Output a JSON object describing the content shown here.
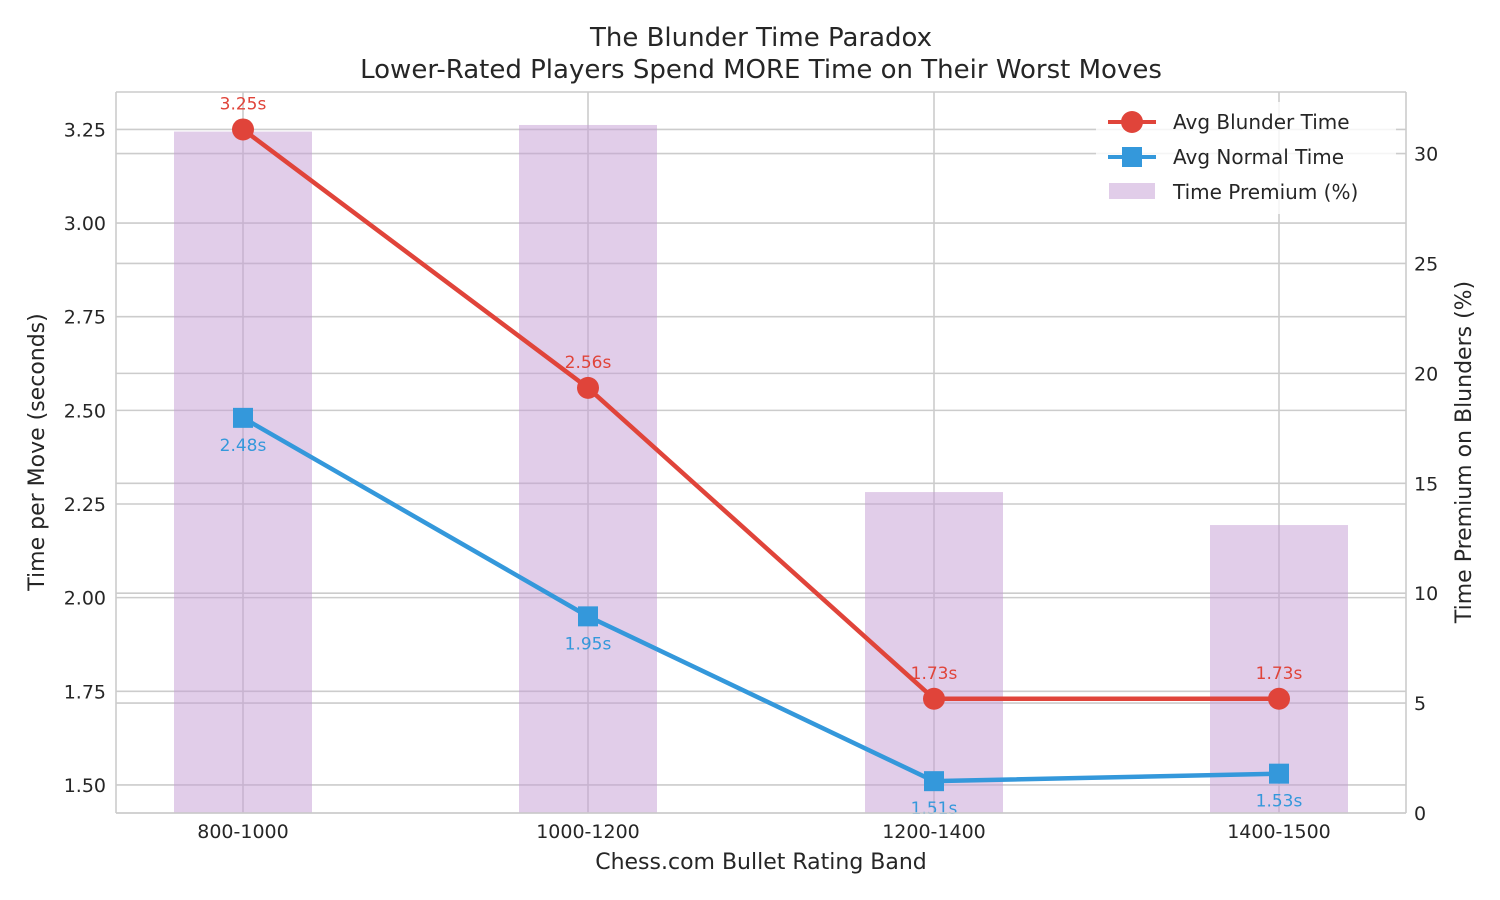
{
  "chart_data": {
    "type": "bar+line",
    "title_line1": "The Blunder Time Paradox",
    "title_line2": "Lower-Rated Players Spend MORE Time on Their Worst Moves",
    "xlabel": "Chess.com Bullet Rating Band",
    "ylabel_left": "Time per Move (seconds)",
    "ylabel_right": "Time Premium on Blunders (%)",
    "categories": [
      "800-1000",
      "1000-1200",
      "1200-1400",
      "1400-1500"
    ],
    "ylim_left": [
      1.425,
      3.35
    ],
    "yticks_left": [
      "1.50",
      "1.75",
      "2.00",
      "2.25",
      "2.50",
      "2.75",
      "3.00",
      "3.25"
    ],
    "ylim_right": [
      0,
      32.8
    ],
    "yticks_right": [
      "0",
      "5",
      "10",
      "15",
      "20",
      "25",
      "30"
    ],
    "grid": true,
    "legend_position": "top-right",
    "series": [
      {
        "name": "Avg Blunder Time",
        "kind": "line",
        "marker": "circle",
        "color": "#e0443a",
        "values": [
          3.25,
          2.56,
          1.73,
          1.73
        ],
        "labels": [
          "3.25s",
          "2.56s",
          "1.73s",
          "1.73s"
        ]
      },
      {
        "name": "Avg Normal Time",
        "kind": "line",
        "marker": "square",
        "color": "#3498db",
        "values": [
          2.48,
          1.95,
          1.51,
          1.53
        ],
        "labels": [
          "2.48s",
          "1.95s",
          "1.51s",
          "1.53s"
        ]
      },
      {
        "name": "Time Premium (%)",
        "kind": "bar",
        "axis": "right",
        "color": "#c39bd3",
        "values": [
          31.0,
          31.3,
          14.6,
          13.1
        ]
      }
    ]
  }
}
